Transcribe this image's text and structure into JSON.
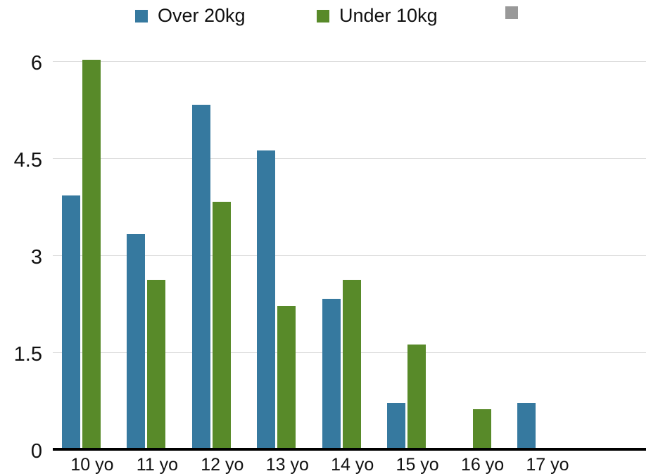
{
  "colors": {
    "series_over20": "#36799F",
    "series_under10": "#588A29",
    "legend_extra": "#999999",
    "gridline": "#DDDDDD",
    "axis": "#000000",
    "text": "#111111"
  },
  "legend": {
    "items": [
      {
        "label": "Over 20kg",
        "color": "#36799F"
      },
      {
        "label": "Under 10kg",
        "color": "#588A29"
      },
      {
        "label": "",
        "color": "#999999"
      }
    ]
  },
  "chart_data": {
    "type": "bar",
    "title": "",
    "xlabel": "",
    "ylabel": "",
    "categories": [
      "10 yo",
      "11 yo",
      "12 yo",
      "13 yo",
      "14 yo",
      "15 yo",
      "16 yo",
      "17 yo"
    ],
    "series": [
      {
        "name": "Over 20kg",
        "color": "#36799F",
        "values": [
          3.9,
          3.3,
          5.3,
          4.6,
          2.3,
          0.7,
          0,
          0.7
        ]
      },
      {
        "name": "Under 10kg",
        "color": "#588A29",
        "values": [
          6.0,
          2.6,
          3.8,
          2.2,
          2.6,
          1.6,
          0.6,
          0
        ]
      }
    ],
    "ylim": [
      0,
      6
    ],
    "y_ticks": [
      {
        "v": 0,
        "label": "0"
      },
      {
        "v": 1.5,
        "label": "1.5"
      },
      {
        "v": 3,
        "label": "3"
      },
      {
        "v": 4.5,
        "label": "4.5"
      },
      {
        "v": 6,
        "label": "6"
      }
    ],
    "grid": "horizontal",
    "legend_position": "top"
  }
}
